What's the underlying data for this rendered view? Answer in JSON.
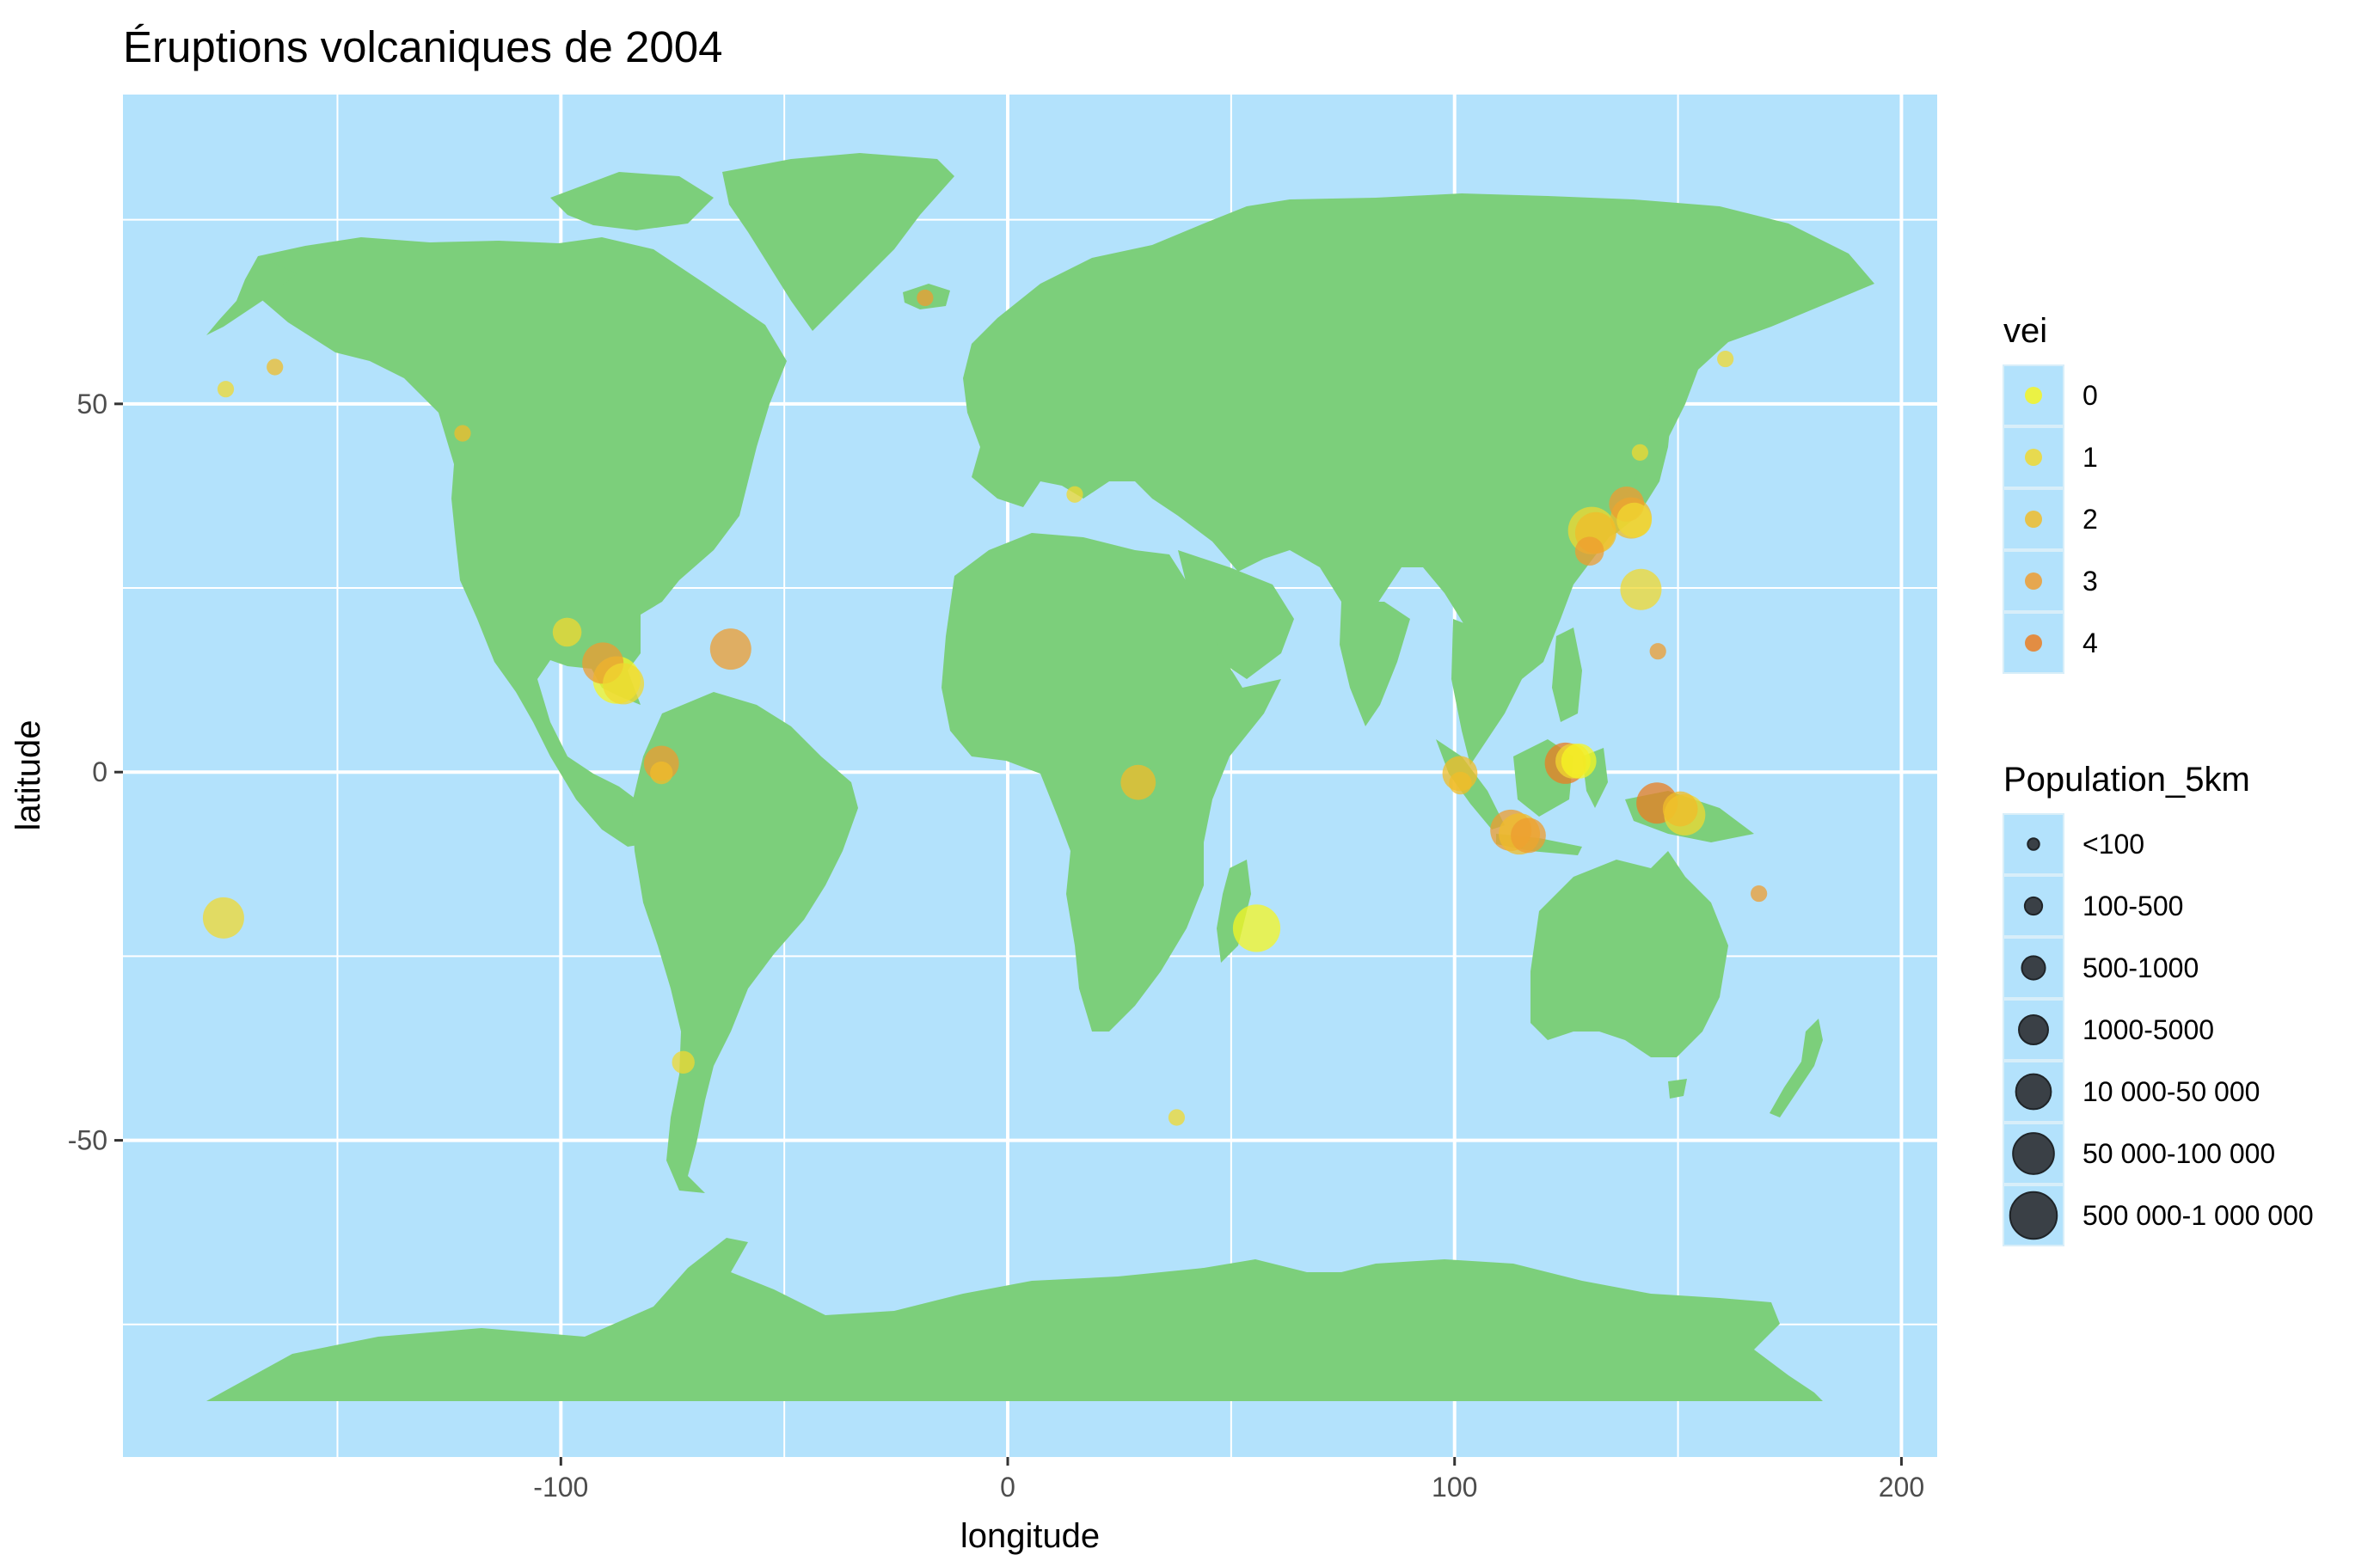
{
  "chart_data": {
    "type": "scatter",
    "title": "Éruptions volcaniques de 2004",
    "xlabel": "longitude",
    "ylabel": "latitude",
    "xlim": [
      -198,
      208
    ],
    "ylim": [
      -93,
      92
    ],
    "x_ticks": [
      -100,
      0,
      100,
      200
    ],
    "y_ticks": [
      -50,
      0,
      50
    ],
    "x_tick_labels": [
      "-100",
      "0",
      "100",
      "200"
    ],
    "y_tick_labels": [
      "-50",
      "0",
      "50"
    ],
    "grid": true,
    "basemap": "world land masses",
    "colors": {
      "panel_bg": "#b3e2fc",
      "land": "#7ccf7b",
      "grid": "#ffffff",
      "vei_scale": [
        "#f5f523",
        "#f0d830",
        "#f0bc2a",
        "#ee9c30",
        "#ea7e22"
      ],
      "size_key": "#3a4046"
    },
    "legends": {
      "vei": {
        "title": "vei",
        "position": "right",
        "items": [
          "0",
          "1",
          "2",
          "3",
          "4"
        ]
      },
      "population": {
        "title": "Population_5km",
        "position": "right",
        "items": [
          "<100",
          "100-500",
          "500-1000",
          "1000-5000",
          "10 000-50 000",
          "50 000-100 000",
          "500 000-1 000 000"
        ]
      }
    },
    "points": [
      {
        "lon": -175,
        "lat": 52,
        "vei": 1,
        "size": 1
      },
      {
        "lon": -164,
        "lat": 55,
        "vei": 2,
        "size": 1
      },
      {
        "lon": -122,
        "lat": 46,
        "vei": 2,
        "size": 1
      },
      {
        "lon": -98.6,
        "lat": 19,
        "vei": 1,
        "size": 3
      },
      {
        "lon": -90.6,
        "lat": 14.8,
        "vei": 3,
        "size": 5
      },
      {
        "lon": -87.5,
        "lat": 12.5,
        "vei": 0,
        "size": 6
      },
      {
        "lon": -86,
        "lat": 12,
        "vei": 1,
        "size": 5
      },
      {
        "lon": -62,
        "lat": 16.7,
        "vei": 3,
        "size": 5
      },
      {
        "lon": -77.5,
        "lat": 1.2,
        "vei": 3,
        "size": 4
      },
      {
        "lon": -77.5,
        "lat": -0.1,
        "vei": 2,
        "size": 2
      },
      {
        "lon": -72.6,
        "lat": -39.4,
        "vei": 1,
        "size": 2
      },
      {
        "lon": -175.5,
        "lat": -19.8,
        "vei": 1,
        "size": 5
      },
      {
        "lon": -18.5,
        "lat": 64.4,
        "vei": 3,
        "size": 1
      },
      {
        "lon": 15,
        "lat": 37.7,
        "vei": 1,
        "size": 1
      },
      {
        "lon": 29.2,
        "lat": -1.4,
        "vei": 2,
        "size": 4
      },
      {
        "lon": 55.7,
        "lat": -21.2,
        "vei": 0,
        "size": 6
      },
      {
        "lon": 37.8,
        "lat": -46.9,
        "vei": 1,
        "size": 1
      },
      {
        "lon": 101.2,
        "lat": -0.2,
        "vei": 2,
        "size": 4
      },
      {
        "lon": 101.3,
        "lat": -1.5,
        "vei": 2,
        "size": 2
      },
      {
        "lon": 112.6,
        "lat": -7.9,
        "vei": 3,
        "size": 5
      },
      {
        "lon": 114.5,
        "lat": -8.4,
        "vei": 2,
        "size": 5
      },
      {
        "lon": 116.5,
        "lat": -8.6,
        "vei": 3,
        "size": 4
      },
      {
        "lon": 124.8,
        "lat": 1.2,
        "vei": 4,
        "size": 5
      },
      {
        "lon": 126.5,
        "lat": 1.5,
        "vei": 1,
        "size": 4
      },
      {
        "lon": 127.8,
        "lat": 1.5,
        "vei": 0,
        "size": 4
      },
      {
        "lon": 145.3,
        "lat": -4.2,
        "vei": 4,
        "size": 5
      },
      {
        "lon": 150.5,
        "lat": -5,
        "vei": 2,
        "size": 4
      },
      {
        "lon": 151.5,
        "lat": -5.8,
        "vei": 1,
        "size": 5
      },
      {
        "lon": 168.1,
        "lat": -16.5,
        "vei": 3,
        "size": 1
      },
      {
        "lon": 130.7,
        "lat": 32.8,
        "vei": 1,
        "size": 6
      },
      {
        "lon": 131.6,
        "lat": 32.5,
        "vei": 2,
        "size": 5
      },
      {
        "lon": 130.2,
        "lat": 30,
        "vei": 3,
        "size": 3
      },
      {
        "lon": 138.5,
        "lat": 36.4,
        "vei": 3,
        "size": 4
      },
      {
        "lon": 139.5,
        "lat": 34.5,
        "vei": 2,
        "size": 5
      },
      {
        "lon": 140.2,
        "lat": 34.2,
        "vei": 1,
        "size": 4
      },
      {
        "lon": 141.5,
        "lat": 43.4,
        "vei": 1,
        "size": 1
      },
      {
        "lon": 141.7,
        "lat": 24.8,
        "vei": 1,
        "size": 5
      },
      {
        "lon": 145.5,
        "lat": 16.4,
        "vei": 3,
        "size": 1
      },
      {
        "lon": 160.6,
        "lat": 56.1,
        "vei": 1,
        "size": 1
      }
    ]
  }
}
